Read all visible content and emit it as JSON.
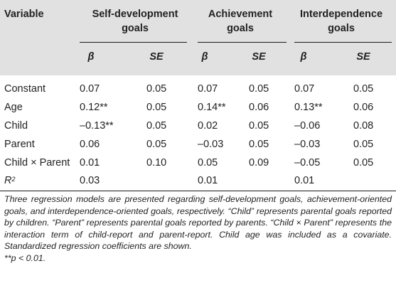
{
  "table": {
    "header": {
      "variable": "Variable",
      "groups": [
        {
          "line1": "Self-development",
          "line2": "goals"
        },
        {
          "line1": "Achievement",
          "line2": "goals"
        },
        {
          "line1": "Interdependence",
          "line2": "goals"
        }
      ],
      "beta": "β",
      "se": "SE"
    },
    "rows": [
      {
        "label": "Constant",
        "cells": [
          "0.07",
          "0.05",
          "0.07",
          "0.05",
          "0.07",
          "0.05"
        ]
      },
      {
        "label": "Age",
        "cells": [
          "0.12**",
          "0.05",
          "0.14**",
          "0.06",
          "0.13**",
          "0.06"
        ]
      },
      {
        "label": "Child",
        "cells": [
          "–0.13**",
          "0.05",
          "0.02",
          "0.05",
          "–0.06",
          "0.08"
        ]
      },
      {
        "label": "Parent",
        "cells": [
          "0.06",
          "0.05",
          "–0.03",
          "0.05",
          "–0.03",
          "0.05"
        ]
      },
      {
        "label": "Child × Parent",
        "cells": [
          "0.01",
          "0.10",
          "0.05",
          "0.09",
          "–0.05",
          "0.05"
        ]
      }
    ],
    "r2": {
      "label_base": "R",
      "label_sup": "2",
      "cells": [
        "0.03",
        "0.01",
        "0.01"
      ]
    }
  },
  "footnote": {
    "text": "Three regression models are presented regarding self-development goals, achievement-oriented goals, and interdependence-oriented goals, respectively. “Child” represents parental goals reported by children. “Parent” represents parental goals reported by parents. “Child × Parent” represents the interaction term of child-report and parent-report. Child age was included as a covariate. Standardized regression coefficients are shown.",
    "sig_stars": "**",
    "sig_text": "p < 0.01."
  }
}
